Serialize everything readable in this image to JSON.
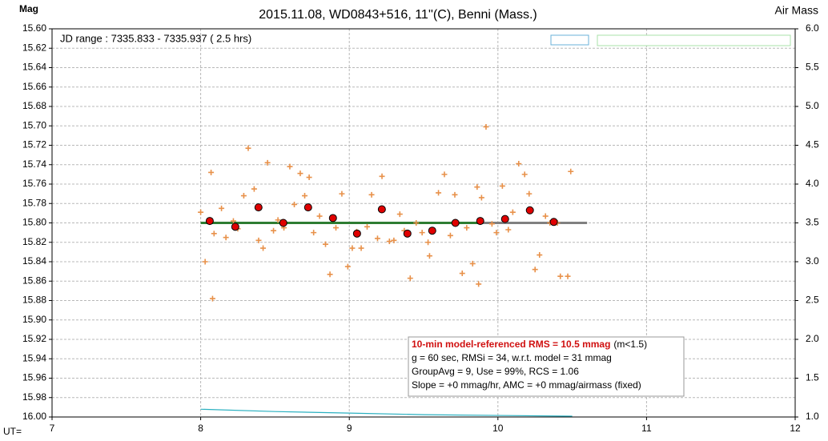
{
  "chart_data": {
    "type": "scatter",
    "title": "2015.11.08, WD0843+516, 11''(C), Benni (Mass.)",
    "y_label": "Mag",
    "y2_label": "Air Mass",
    "x_label": "UT=",
    "jd_range": "JD range : 7335.833 - 7335.937 ( 2.5 hrs)",
    "annotation": {
      "headline": "10-min model-referenced RMS = 10.5 mmag",
      "headline_note": "(m<1.5)",
      "lines": [
        "g = 60 sec, RMSi = 34, w.r.t. model = 31 mmag",
        "GroupAvg  = 9, Use = 99%, RCS = 1.06",
        "Slope = +0 mmag/hr,  AMC = +0 mmag/airmass (fixed)"
      ]
    },
    "xlim": [
      7,
      12
    ],
    "xticks": [
      7,
      8,
      9,
      10,
      11,
      12
    ],
    "ylim": [
      16.0,
      15.6
    ],
    "yticks": [
      {
        "value": 15.6,
        "label": "15.60"
      },
      {
        "value": 15.62,
        "label": "15.62"
      },
      {
        "value": 15.64,
        "label": "15.64"
      },
      {
        "value": 15.66,
        "label": "15.66"
      },
      {
        "value": 15.68,
        "label": "15.68"
      },
      {
        "value": 15.7,
        "label": "15.70"
      },
      {
        "value": 15.72,
        "label": "15.72"
      },
      {
        "value": 15.74,
        "label": "15.74"
      },
      {
        "value": 15.76,
        "label": "15.76"
      },
      {
        "value": 15.78,
        "label": "15.78"
      },
      {
        "value": 15.8,
        "label": "15.80"
      },
      {
        "value": 15.82,
        "label": "15.82"
      },
      {
        "value": 15.84,
        "label": "15.84"
      },
      {
        "value": 15.86,
        "label": "15.86"
      },
      {
        "value": 15.88,
        "label": "15.88"
      },
      {
        "value": 15.9,
        "label": "15.90"
      },
      {
        "value": 15.92,
        "label": "15.92"
      },
      {
        "value": 15.94,
        "label": "15.94"
      },
      {
        "value": 15.96,
        "label": "15.96"
      },
      {
        "value": 15.98,
        "label": "15.98"
      },
      {
        "value": 16.0,
        "label": "16.00"
      }
    ],
    "y2lim": [
      1.0,
      6.0
    ],
    "y2ticks": [
      {
        "value": 1.0,
        "label": "1.0"
      },
      {
        "value": 1.5,
        "label": "1.5"
      },
      {
        "value": 2.0,
        "label": "2.0"
      },
      {
        "value": 2.5,
        "label": "2.5"
      },
      {
        "value": 3.0,
        "label": "3.0"
      },
      {
        "value": 3.5,
        "label": "3.5"
      },
      {
        "value": 4.0,
        "label": "4.0"
      },
      {
        "value": 4.5,
        "label": "4.5"
      },
      {
        "value": 5.0,
        "label": "5.0"
      },
      {
        "value": 5.5,
        "label": "5.5"
      },
      {
        "value": 6.0,
        "label": "6.0"
      }
    ],
    "grid": true,
    "series": [
      {
        "marker": "plus",
        "color": "#e8914a",
        "x": [
          8.0,
          8.03,
          8.07,
          8.08,
          8.09,
          8.14,
          8.17,
          8.22,
          8.25,
          8.29,
          8.32,
          8.36,
          8.39,
          8.42,
          8.45,
          8.49,
          8.52,
          8.56,
          8.6,
          8.63,
          8.67,
          8.7,
          8.73,
          8.76,
          8.8,
          8.84,
          8.87,
          8.91,
          8.95,
          8.99,
          9.02,
          9.05,
          9.08,
          9.12,
          9.15,
          9.19,
          9.22,
          9.27,
          9.3,
          9.34,
          9.37,
          9.41,
          9.45,
          9.49,
          9.53,
          9.54,
          9.6,
          9.64,
          9.68,
          9.71,
          9.76,
          9.79,
          9.83,
          9.86,
          9.87,
          9.89,
          9.92,
          9.96,
          9.99,
          10.03,
          10.07,
          10.1,
          10.14,
          10.18,
          10.21,
          10.25,
          10.28,
          10.32,
          10.35,
          10.4,
          10.42,
          10.47,
          10.49
        ],
        "values": [
          15.789,
          15.84,
          15.748,
          15.878,
          15.811,
          15.785,
          15.815,
          15.798,
          15.806,
          15.772,
          15.723,
          15.765,
          15.818,
          15.826,
          15.738,
          15.808,
          15.797,
          15.805,
          15.742,
          15.781,
          15.749,
          15.772,
          15.753,
          15.81,
          15.793,
          15.822,
          15.853,
          15.805,
          15.77,
          15.845,
          15.826,
          15.809,
          15.826,
          15.804,
          15.771,
          15.816,
          15.752,
          15.819,
          15.818,
          15.791,
          15.808,
          15.857,
          15.8,
          15.81,
          15.82,
          15.834,
          15.769,
          15.75,
          15.813,
          15.771,
          15.852,
          15.805,
          15.842,
          15.763,
          15.863,
          15.774,
          15.701,
          15.801,
          15.81,
          15.762,
          15.807,
          15.789,
          15.739,
          15.75,
          15.77,
          15.848,
          15.833,
          15.793,
          15.8,
          15.8,
          15.855,
          15.855,
          15.747
        ]
      },
      {
        "marker": "circle",
        "color": "#e00000",
        "x": [
          8.061,
          8.233,
          8.389,
          8.556,
          8.723,
          8.89,
          9.052,
          9.219,
          9.391,
          9.558,
          9.714,
          9.881,
          10.048,
          10.215,
          10.376
        ],
        "values": [
          15.798,
          15.804,
          15.784,
          15.8,
          15.784,
          15.795,
          15.811,
          15.786,
          15.811,
          15.808,
          15.8,
          15.798,
          15.796,
          15.787,
          15.799
        ]
      },
      {
        "marker": "line",
        "color": "#2e7d32",
        "x": [
          8.0,
          9.9
        ],
        "values": [
          15.8,
          15.8
        ]
      },
      {
        "marker": "line",
        "color": "#808080",
        "x": [
          9.9,
          10.6
        ],
        "values": [
          15.8,
          15.8
        ]
      },
      {
        "marker": "line",
        "color": "#2ab0c0",
        "axis": "y2",
        "x": [
          8.0,
          8.5,
          9.0,
          9.5,
          10.0,
          10.5
        ],
        "values": [
          1.1,
          1.07,
          1.05,
          1.03,
          1.02,
          1.01
        ]
      }
    ]
  }
}
